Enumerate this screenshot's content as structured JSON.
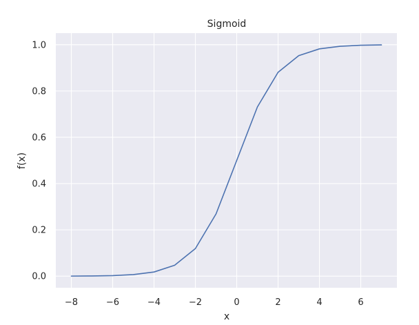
{
  "chart_data": {
    "type": "line",
    "title": "Sigmoid",
    "xlabel": "x",
    "ylabel": "f(x)",
    "xlim": [
      -8.75,
      7.75
    ],
    "ylim": [
      -0.05,
      1.05
    ],
    "xticks": [
      -8,
      -6,
      -4,
      -2,
      0,
      2,
      4,
      6
    ],
    "yticks": [
      0.0,
      0.2,
      0.4,
      0.6,
      0.8,
      1.0
    ],
    "xtick_labels": [
      "−8",
      "−6",
      "−4",
      "−2",
      "0",
      "2",
      "4",
      "6"
    ],
    "ytick_labels": [
      "0.0",
      "0.2",
      "0.4",
      "0.6",
      "0.8",
      "1.0"
    ],
    "grid": true,
    "background": "#eaeaf2",
    "series": [
      {
        "color": "#4c72b0",
        "x": [
          -8,
          -7,
          -6,
          -5,
          -4,
          -3,
          -2,
          -1,
          0,
          1,
          2,
          3,
          4,
          5,
          6,
          7
        ],
        "y": [
          0.0003,
          0.0009,
          0.0025,
          0.0067,
          0.018,
          0.0474,
          0.1192,
          0.2689,
          0.5,
          0.7311,
          0.8808,
          0.9526,
          0.982,
          0.9933,
          0.9975,
          0.9991
        ]
      }
    ]
  }
}
